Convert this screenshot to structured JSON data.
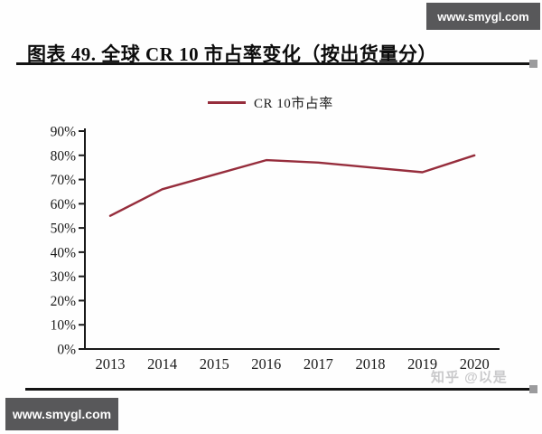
{
  "watermarks": {
    "top_right": "www.smygl.com",
    "bottom_left": "www.smygl.com",
    "zhihu": "知乎 @以是"
  },
  "figure_title": "图表 49. 全球 CR 10 市占率变化（按出货量分）",
  "legend": {
    "label": "CR 10市占率"
  },
  "chart_data": {
    "type": "line",
    "title": "全球 CR 10 市占率变化（按出货量分）",
    "categories": [
      "2013",
      "2014",
      "2015",
      "2016",
      "2017",
      "2018",
      "2019",
      "2020"
    ],
    "series": [
      {
        "name": "CR 10市占率",
        "color": "#962D3C",
        "values": [
          55,
          66,
          72,
          78,
          77,
          75,
          73,
          80
        ]
      }
    ],
    "xlabel": "",
    "ylabel": "",
    "ylim": [
      0,
      90
    ],
    "ytick_step": 10,
    "ytick_labels": [
      "90%",
      "80%",
      "70%",
      "60%",
      "50%",
      "40%",
      "30%",
      "20%",
      "10%",
      "0%"
    ],
    "grid": false,
    "legend_position": "top"
  },
  "colors": {
    "watermark_bg": "#58585A",
    "watermark_text": "#ffffff",
    "axis": "#1a1a1a",
    "line": "#962D3C",
    "zhihu_text": "#c9c9cb",
    "rule": "#141414"
  }
}
